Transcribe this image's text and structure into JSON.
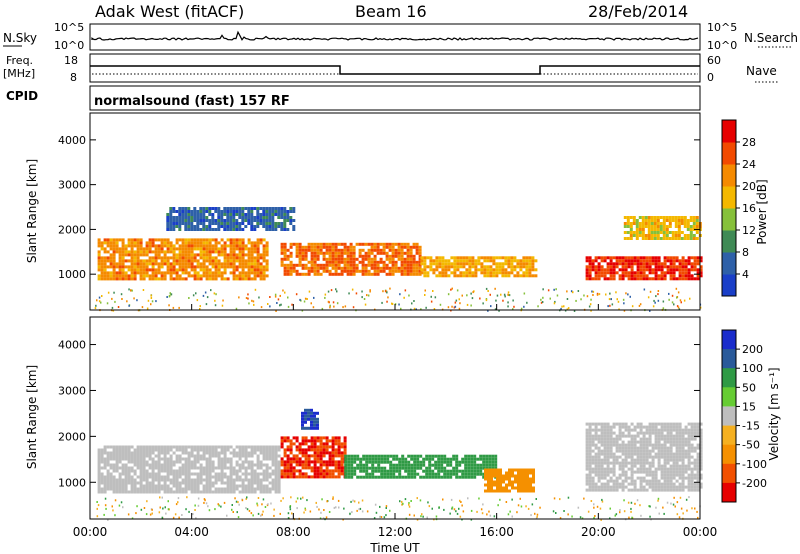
{
  "header": {
    "station": "Adak West (fitACF)",
    "beam": "Beam 16",
    "date": "28/Feb/2014"
  },
  "sky_panel": {
    "left_label": "N.Sky",
    "right_label": "N.Search",
    "ticks": [
      "10^5",
      "10^0"
    ]
  },
  "freq_panel": {
    "left_label_1": "Freq.",
    "left_label_2": "[MHz]",
    "left_ticks": [
      "18",
      "8"
    ],
    "right_label": "Nave",
    "right_ticks": [
      "60",
      "0"
    ]
  },
  "cpid": {
    "label": "CPID",
    "program": "normalsound (fast) 157 RF"
  },
  "colors": {
    "power": [
      "#1a3fc8",
      "#2e60a8",
      "#3f8a55",
      "#86c03a",
      "#f4b800",
      "#f58a00",
      "#f24a00",
      "#e60000"
    ],
    "velocity": [
      "#e60000",
      "#f25000",
      "#f59000",
      "#f5b020",
      "#bebebe",
      "#66cc33",
      "#2f9a45",
      "#2a5a9a",
      "#1a2ccc"
    ]
  },
  "chart_data": [
    {
      "type": "heatmap",
      "parameter": "power",
      "ylabel": "Slant Range [km]",
      "yticks": [
        1000,
        2000,
        3000,
        4000
      ],
      "ylim": [
        200,
        4600
      ],
      "colorbar_label": "Power [dB]",
      "colorbar_ticks": [
        "4",
        "8",
        "12",
        "16",
        "20",
        "24",
        "28"
      ],
      "colorbar_range": [
        0,
        32
      ],
      "regions": [
        {
          "t0": 0.3,
          "t1": 7.0,
          "r0": 900,
          "r1": 1800,
          "value": 22
        },
        {
          "t0": 7.5,
          "t1": 13.0,
          "r0": 1000,
          "r1": 1700,
          "value": 24
        },
        {
          "t0": 13.0,
          "t1": 17.5,
          "r0": 950,
          "r1": 1400,
          "value": 20
        },
        {
          "t0": 19.5,
          "t1": 24.0,
          "r0": 900,
          "r1": 1400,
          "value": 28
        },
        {
          "t0": 21.0,
          "t1": 24.0,
          "r0": 1800,
          "r1": 2300,
          "value": 18
        },
        {
          "t0": 3.0,
          "t1": 8.0,
          "r0": 2000,
          "r1": 2500,
          "value": 6
        }
      ]
    },
    {
      "type": "heatmap",
      "parameter": "velocity",
      "ylabel": "Slant Range [km]",
      "yticks": [
        1000,
        2000,
        3000,
        4000
      ],
      "ylim": [
        200,
        4600
      ],
      "colorbar_label": "Velocity [m s⁻¹]",
      "colorbar_ticks": [
        "200",
        "100",
        "50",
        "15",
        "-15",
        "-50",
        "-100",
        "-200"
      ],
      "colorbar_range": [
        -250,
        250
      ],
      "xlabel": "Time UT",
      "xticks": [
        "00:00",
        "04:00",
        "08:00",
        "12:00",
        "16:00",
        "20:00",
        "00:00"
      ],
      "xlim": [
        0,
        24
      ],
      "regions": [
        {
          "t0": 0.3,
          "t1": 7.5,
          "r0": 800,
          "r1": 1800,
          "value": 0
        },
        {
          "t0": 7.5,
          "t1": 10.0,
          "r0": 1100,
          "r1": 2000,
          "value": -200
        },
        {
          "t0": 10.0,
          "t1": 16.0,
          "r0": 1100,
          "r1": 1600,
          "value": 60
        },
        {
          "t0": 15.5,
          "t1": 17.5,
          "r0": 800,
          "r1": 1300,
          "value": -60
        },
        {
          "t0": 19.5,
          "t1": 24.0,
          "r0": 800,
          "r1": 2300,
          "value": 0
        },
        {
          "t0": 8.3,
          "t1": 9.0,
          "r0": 2200,
          "r1": 2600,
          "value": 200
        }
      ]
    }
  ]
}
